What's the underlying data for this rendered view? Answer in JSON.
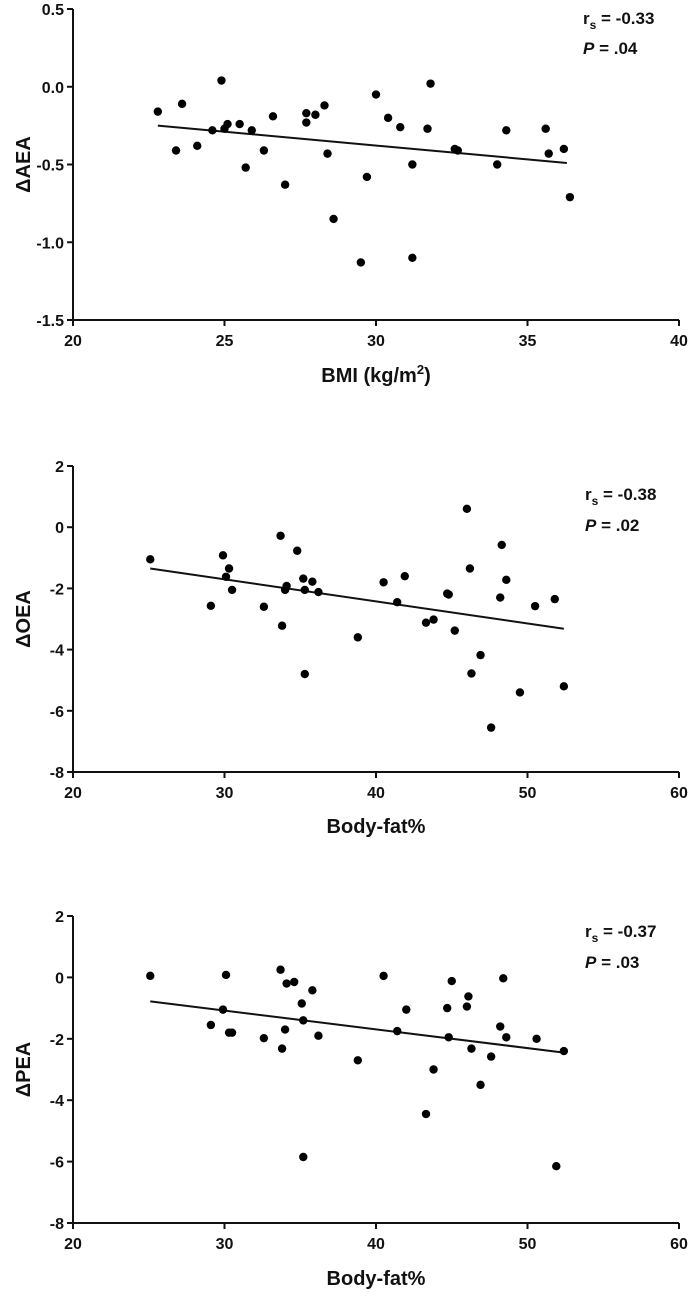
{
  "chart_data": [
    {
      "type": "scatter",
      "ylabel": "ΔAEA",
      "xlabel_main": "BMI (kg/m",
      "xlabel_sup": "2",
      "xlabel_tail": ")",
      "xlim": [
        20,
        40
      ],
      "ylim": [
        -1.5,
        0.5
      ],
      "xticks": [
        20,
        25,
        30,
        35,
        40
      ],
      "yticks": [
        -1.5,
        -1.0,
        -0.5,
        0.0,
        0.5
      ],
      "ytick_labels": [
        "-1.5",
        "-1.0",
        "-0.5",
        "0.0",
        "0.5"
      ],
      "stat_r_main": "r",
      "stat_r_sub": "s",
      "stat_r_value": " = -0.33",
      "stat_p_letter": "P",
      "stat_p_value": " = .04",
      "fit": {
        "x": [
          22.8,
          36.3
        ],
        "y": [
          -0.25,
          -0.49
        ]
      },
      "points": [
        [
          22.8,
          -0.16
        ],
        [
          23.4,
          -0.41
        ],
        [
          23.6,
          -0.11
        ],
        [
          24.1,
          -0.38
        ],
        [
          24.6,
          -0.28
        ],
        [
          24.9,
          0.04
        ],
        [
          25.0,
          -0.27
        ],
        [
          25.1,
          -0.24
        ],
        [
          25.5,
          -0.24
        ],
        [
          25.7,
          -0.52
        ],
        [
          25.9,
          -0.28
        ],
        [
          26.3,
          -0.41
        ],
        [
          26.6,
          -0.19
        ],
        [
          27.0,
          -0.63
        ],
        [
          27.7,
          -0.17
        ],
        [
          27.7,
          -0.23
        ],
        [
          28.0,
          -0.18
        ],
        [
          28.3,
          -0.12
        ],
        [
          28.4,
          -0.43
        ],
        [
          28.6,
          -0.85
        ],
        [
          29.5,
          -1.13
        ],
        [
          29.7,
          -0.58
        ],
        [
          30.0,
          -0.05
        ],
        [
          30.4,
          -0.2
        ],
        [
          30.8,
          -0.26
        ],
        [
          31.2,
          -0.5
        ],
        [
          31.2,
          -1.1
        ],
        [
          31.7,
          -0.27
        ],
        [
          31.8,
          0.02
        ],
        [
          32.6,
          -0.4
        ],
        [
          32.7,
          -0.41
        ],
        [
          34.0,
          -0.5
        ],
        [
          34.3,
          -0.28
        ],
        [
          35.6,
          -0.27
        ],
        [
          35.7,
          -0.43
        ],
        [
          36.2,
          -0.4
        ],
        [
          36.4,
          -0.71
        ]
      ]
    },
    {
      "type": "scatter",
      "ylabel": "ΔOEA",
      "xlabel_main": "Body-fat%",
      "xlabel_sup": "",
      "xlabel_tail": "",
      "xlim": [
        20,
        60
      ],
      "ylim": [
        -8,
        2
      ],
      "xticks": [
        20,
        30,
        40,
        50,
        60
      ],
      "yticks": [
        -8,
        -6,
        -4,
        -2,
        0,
        2
      ],
      "ytick_labels": [
        "-8",
        "-6",
        "-4",
        "-2",
        "0",
        "2"
      ],
      "stat_r_main": "r",
      "stat_r_sub": "s",
      "stat_r_value": " = -0.38",
      "stat_p_letter": "P",
      "stat_p_value": " = .02",
      "fit": {
        "x": [
          25.1,
          52.4
        ],
        "y": [
          -1.35,
          -3.32
        ]
      },
      "points": [
        [
          25.1,
          -1.05
        ],
        [
          29.1,
          -2.57
        ],
        [
          29.9,
          -0.92
        ],
        [
          30.1,
          -1.62
        ],
        [
          30.3,
          -1.35
        ],
        [
          30.5,
          -2.05
        ],
        [
          32.6,
          -2.6
        ],
        [
          33.7,
          -0.28
        ],
        [
          33.8,
          -3.22
        ],
        [
          34.0,
          -2.05
        ],
        [
          34.1,
          -1.92
        ],
        [
          34.8,
          -0.77
        ],
        [
          35.2,
          -1.68
        ],
        [
          35.3,
          -2.05
        ],
        [
          35.3,
          -4.8
        ],
        [
          35.8,
          -1.78
        ],
        [
          36.2,
          -2.12
        ],
        [
          38.8,
          -3.6
        ],
        [
          40.5,
          -1.8
        ],
        [
          41.4,
          -2.45
        ],
        [
          41.9,
          -1.6
        ],
        [
          43.3,
          -3.12
        ],
        [
          43.8,
          -3.02
        ],
        [
          44.7,
          -2.17
        ],
        [
          44.8,
          -2.2
        ],
        [
          45.2,
          -3.38
        ],
        [
          46.0,
          0.6
        ],
        [
          46.2,
          -1.35
        ],
        [
          46.3,
          -4.78
        ],
        [
          46.9,
          -4.18
        ],
        [
          47.6,
          -6.55
        ],
        [
          48.2,
          -2.3
        ],
        [
          48.3,
          -0.58
        ],
        [
          48.6,
          -1.72
        ],
        [
          49.5,
          -5.4
        ],
        [
          50.5,
          -2.58
        ],
        [
          51.8,
          -2.35
        ],
        [
          52.4,
          -5.2
        ]
      ]
    },
    {
      "type": "scatter",
      "ylabel": "ΔPEA",
      "xlabel_main": "Body-fat%",
      "xlabel_sup": "",
      "xlabel_tail": "",
      "xlim": [
        20,
        60
      ],
      "ylim": [
        -8,
        2
      ],
      "xticks": [
        20,
        30,
        40,
        50,
        60
      ],
      "yticks": [
        -8,
        -6,
        -4,
        -2,
        0,
        2
      ],
      "ytick_labels": [
        "-8",
        "-6",
        "-4",
        "-2",
        "0",
        "2"
      ],
      "stat_r_main": "r",
      "stat_r_sub": "s",
      "stat_r_value": " = -0.37",
      "stat_p_letter": "P",
      "stat_p_value": " = .03",
      "fit": {
        "x": [
          25.1,
          52.4
        ],
        "y": [
          -0.78,
          -2.45
        ]
      },
      "points": [
        [
          25.1,
          0.05
        ],
        [
          29.1,
          -1.55
        ],
        [
          29.9,
          -1.05
        ],
        [
          30.1,
          0.08
        ],
        [
          30.3,
          -1.8
        ],
        [
          30.5,
          -1.8
        ],
        [
          32.6,
          -1.98
        ],
        [
          33.7,
          0.25
        ],
        [
          33.8,
          -2.32
        ],
        [
          34.0,
          -1.7
        ],
        [
          34.1,
          -0.2
        ],
        [
          34.6,
          -0.15
        ],
        [
          35.1,
          -0.85
        ],
        [
          35.2,
          -1.4
        ],
        [
          35.2,
          -5.85
        ],
        [
          35.8,
          -0.42
        ],
        [
          36.2,
          -1.9
        ],
        [
          38.8,
          -2.7
        ],
        [
          40.5,
          0.05
        ],
        [
          41.4,
          -1.75
        ],
        [
          42.0,
          -1.05
        ],
        [
          43.3,
          -4.45
        ],
        [
          43.8,
          -3.0
        ],
        [
          44.7,
          -1.0
        ],
        [
          44.8,
          -1.95
        ],
        [
          45.0,
          -0.12
        ],
        [
          46.0,
          -0.95
        ],
        [
          46.1,
          -0.62
        ],
        [
          46.3,
          -2.32
        ],
        [
          46.9,
          -3.5
        ],
        [
          47.6,
          -2.58
        ],
        [
          48.2,
          -1.6
        ],
        [
          48.4,
          -0.03
        ],
        [
          48.6,
          -1.95
        ],
        [
          50.6,
          -2.0
        ],
        [
          51.9,
          -6.15
        ],
        [
          52.4,
          -2.4
        ]
      ]
    }
  ]
}
